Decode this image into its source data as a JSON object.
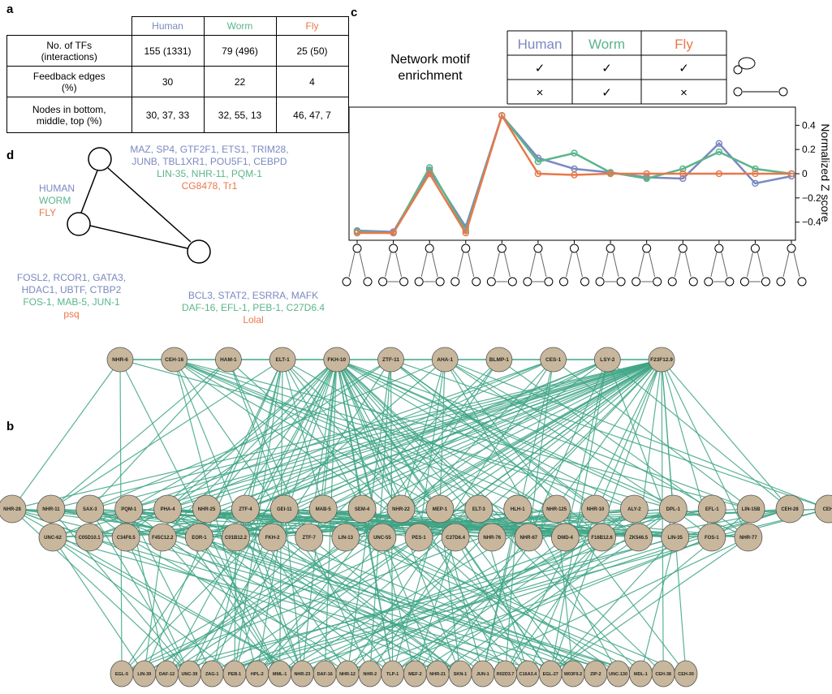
{
  "panel_labels": [
    "a",
    "b",
    "c",
    "d"
  ],
  "table_a": {
    "header": [
      "Human",
      "Worm",
      "Fly"
    ],
    "rows": [
      [
        "No. of TFs\n(interactions)",
        "155 (1331)",
        "79 (496)",
        "25 (50)"
      ],
      [
        "Feedback edges\n(%)",
        "30",
        "22",
        "4"
      ],
      [
        "Nodes in bottom,\nmiddle, top (%)",
        "30, 37, 33",
        "32, 55, 13",
        "46, 47, 7"
      ]
    ]
  },
  "motif_table": {
    "header": [
      "Human",
      "Worm",
      "Fly"
    ],
    "rows": [
      [
        "✓",
        "✓",
        "✓"
      ],
      [
        "×",
        "✓",
        "×"
      ]
    ]
  },
  "chart_data": {
    "type": "line",
    "title": "Network motif\nenrichment",
    "y_label": "Normalized Z score",
    "categories": [
      null,
      null,
      null,
      null,
      null,
      null,
      null,
      null,
      null,
      null,
      null,
      null,
      null
    ],
    "series": [
      {
        "name": "Human",
        "color": "#7b88c0",
        "values": [
          -0.47,
          -0.48,
          0.03,
          -0.44,
          0.48,
          0.13,
          0.04,
          0.01,
          -0.03,
          -0.04,
          0.25,
          -0.08,
          -0.02
        ]
      },
      {
        "name": "Worm",
        "color": "#5ab58c",
        "values": [
          -0.48,
          -0.49,
          0.05,
          -0.47,
          0.48,
          0.1,
          0.17,
          0.01,
          -0.04,
          0.04,
          0.18,
          0.04,
          0
        ]
      },
      {
        "name": "Fly",
        "color": "#e8784a",
        "values": [
          -0.49,
          -0.49,
          0,
          -0.49,
          0.48,
          0,
          -0.01,
          0,
          0,
          0,
          0,
          0,
          0
        ]
      }
    ],
    "ylim": [
      -0.55,
      0.55
    ],
    "yticks": [
      {
        "value": -0.4,
        "label": "−0.4"
      },
      {
        "value": -0.2,
        "label": "−0.2"
      },
      0,
      0.2,
      0.4
    ]
  },
  "hierarchy": {
    "legend": [
      "HUMAN",
      "WORM",
      "FLY"
    ],
    "top": {
      "human": "MAZ, SP4, GTF2F1, ETS1, TRIM28,\nJUNB, TBL1XR1, POU5F1, CEBPD",
      "worm": "LIN-35, NHR-11, PQM-1",
      "fly": "CG8478, Tr1"
    },
    "middle": {
      "human": "FOSL2, RCOR1, GATA3,\nHDAC1, UBTF, CTBP2",
      "worm": "FOS-1, MAB-5, JUN-1",
      "fly": "psq"
    },
    "bottom": {
      "human": "BCL3, STAT2, ESRRA, MAFK",
      "worm": "DAF-16, EFL-1, PEB-1, C27D6.4",
      "fly": "Lolal"
    }
  },
  "network": {
    "top": [
      "NHR-6",
      "CEH-16",
      "HAM-1",
      "ELT-1",
      "FKH-10",
      "ZTF-11",
      "AHA-1",
      "BLMP-1",
      "CES-1",
      "LSY-2",
      "F23F12.9"
    ],
    "middle1": [
      "NHR-28",
      "NHR-11",
      "SAX-3",
      "PQM-1",
      "PHA-4",
      "NHR-25",
      "ZTF-4",
      "GEI-11",
      "MAB-5",
      "SEM-4",
      "NHR-22",
      "MEP-1",
      "ELT-3",
      "HLH-1",
      "NHR-125",
      "NHR-10",
      "ALY-2",
      "DPL-1",
      "EFL-1",
      "LIN-15B",
      "CEH-28",
      "CEH-"
    ],
    "middle2": [
      "UNC-62",
      "C05D10.1",
      "C34F6.5",
      "F45C12.2",
      "EOR-1",
      "C01B12.2",
      "FKH-2",
      "ZTF-7",
      "LIN-13",
      "UNC-55",
      "PES-1",
      "C27D6.4",
      "NHR-76",
      "NHR-67",
      "DMD-4",
      "F16B12.6",
      "ZK546.5",
      "LIN-35",
      "FOS-1",
      "NHR-77"
    ],
    "bottom": [
      "EGL-5",
      "LIN-39",
      "DAF-12",
      "UNC-39",
      "ZAG-1",
      "PEB-1",
      "HPL-2",
      "MML-1",
      "NHR-23",
      "DAF-16",
      "NHR-12",
      "NHR-2",
      "TLP-1",
      "MEF-2",
      "NHR-21",
      "SKN-1",
      "JUN-1",
      "R02D3.7",
      "C16A3.4",
      "EGL-27",
      "W03F9.2",
      "ZIP-2",
      "UNC-130",
      "MDL-1",
      "CEH-38",
      "CEH-30"
    ]
  }
}
